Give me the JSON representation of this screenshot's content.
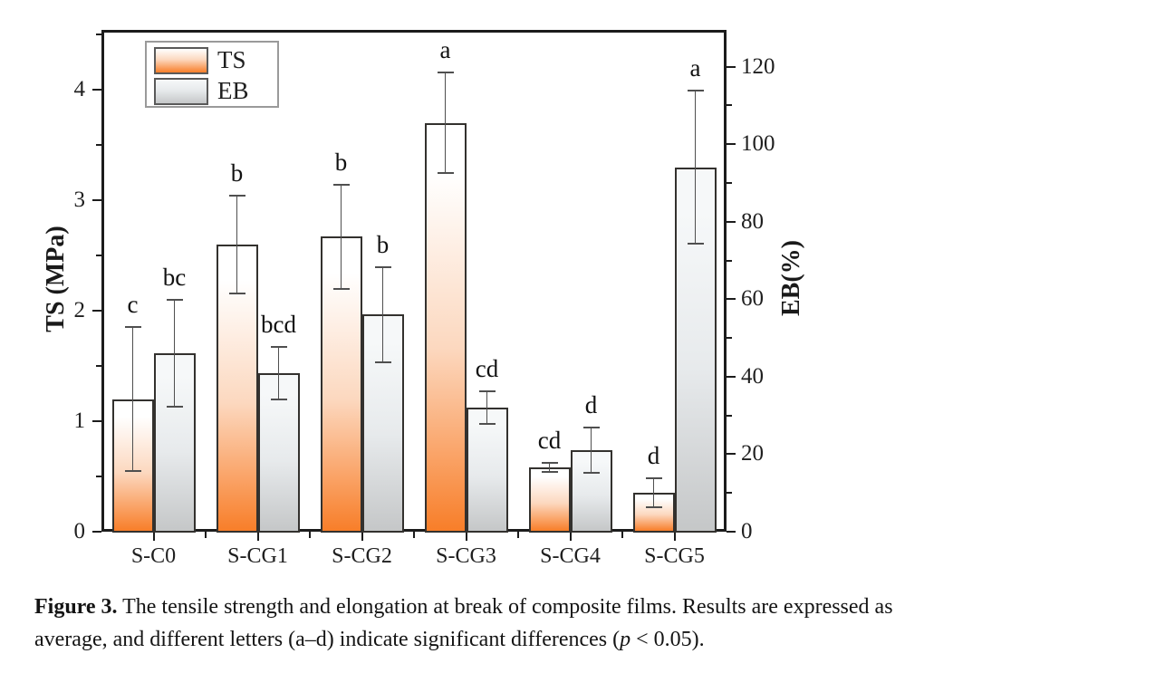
{
  "caption": {
    "label": "Figure 3.",
    "line1": " The tensile strength and elongation at break of composite films. Results are expressed as",
    "line2_pre": "average, and different letters (a–d) indicate significant differences (",
    "p": "p",
    "line2_post": " < 0.05)."
  },
  "chart_data": {
    "type": "bar",
    "title": "",
    "categories": [
      "S-C0",
      "S-CG1",
      "S-CG2",
      "S-CG3",
      "S-CG4",
      "S-CG5"
    ],
    "series": [
      {
        "name": "TS",
        "axis": "left",
        "unit": "MPa",
        "values": [
          1.2,
          2.6,
          2.67,
          3.7,
          0.58,
          0.35
        ],
        "errors": [
          0.66,
          0.45,
          0.48,
          0.46,
          0.05,
          0.14
        ],
        "letters": [
          "c",
          "b",
          "b",
          "a",
          "cd",
          "d"
        ],
        "color_top": "#ffffff",
        "color_mid": "#fcd8bf",
        "color_bottom": "#f87e29"
      },
      {
        "name": "EB",
        "axis": "right",
        "unit": "%",
        "values": [
          46,
          41,
          56,
          32,
          21,
          94
        ],
        "errors": [
          14,
          7,
          12.5,
          4.5,
          6,
          20
        ],
        "letters": [
          "bc",
          "bcd",
          "b",
          "cd",
          "d",
          "a"
        ],
        "color_top": "#f6f8f9",
        "color_mid": "#e7eaec",
        "color_bottom": "#c5c7c8"
      }
    ],
    "left_axis": {
      "label": "TS (MPa)",
      "ticks": [
        0,
        1,
        2,
        3,
        4
      ],
      "minor_step": 0.5,
      "max": 4.54
    },
    "right_axis": {
      "label": "EB(%)",
      "ticks": [
        0,
        20,
        40,
        60,
        80,
        100,
        120
      ],
      "minor_step": 10,
      "max": 129.5
    },
    "legend": {
      "items": [
        "TS",
        "EB"
      ],
      "position": "top-left"
    },
    "grid": false
  }
}
